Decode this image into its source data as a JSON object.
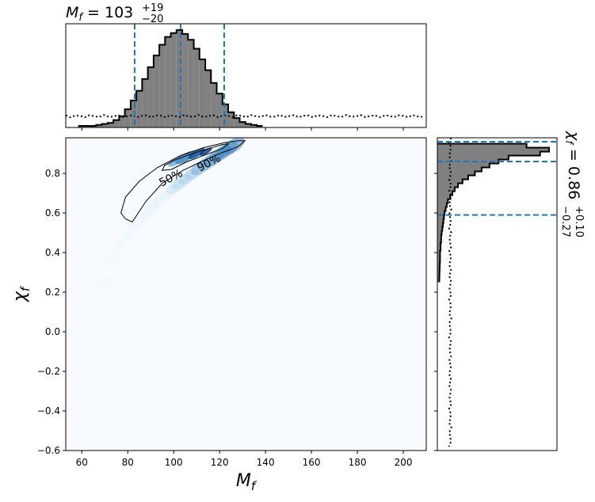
{
  "chart_data": [
    {
      "type": "heatmap",
      "panel": "joint",
      "xlabel": "M_f",
      "ylabel": "χ_f",
      "xlim": [
        53,
        210
      ],
      "ylim": [
        -0.6,
        0.98
      ],
      "xticks": [
        "60",
        "80",
        "100",
        "120",
        "140",
        "160",
        "180",
        "200"
      ],
      "yticks": [
        "−0.6",
        "−0.4",
        "−0.2",
        "0.0",
        "0.2",
        "0.4",
        "0.6",
        "0.8"
      ],
      "colormap": "Blues",
      "density_peak": {
        "mf": 103,
        "chi": 0.86
      },
      "contour_labels": [
        "50%",
        "90%"
      ],
      "contour_90": [
        [
          79,
          0.57
        ],
        [
          77,
          0.6
        ],
        [
          79,
          0.68
        ],
        [
          85,
          0.76
        ],
        [
          93,
          0.83
        ],
        [
          103,
          0.89
        ],
        [
          113,
          0.93
        ],
        [
          122,
          0.955
        ],
        [
          128,
          0.965
        ],
        [
          131,
          0.965
        ],
        [
          128,
          0.935
        ],
        [
          121,
          0.905
        ],
        [
          113,
          0.865
        ],
        [
          104,
          0.815
        ],
        [
          95,
          0.75
        ],
        [
          88,
          0.66
        ],
        [
          84,
          0.59
        ],
        [
          82,
          0.555
        ],
        [
          79,
          0.57
        ]
      ],
      "contour_50": [
        [
          96,
          0.84
        ],
        [
          101,
          0.87
        ],
        [
          108,
          0.9
        ],
        [
          115,
          0.925
        ],
        [
          121,
          0.945
        ],
        [
          124,
          0.95
        ],
        [
          121,
          0.925
        ],
        [
          114,
          0.895
        ],
        [
          106,
          0.86
        ],
        [
          99,
          0.82
        ],
        [
          95,
          0.815
        ],
        [
          96,
          0.84
        ]
      ]
    },
    {
      "type": "bar",
      "panel": "top-marginal",
      "title": {
        "base": "M_f = 103",
        "sup": "+19",
        "sub": "−20"
      },
      "x": [
        60,
        62.5,
        65,
        67.5,
        70,
        72.5,
        75,
        77.5,
        80,
        82.5,
        85,
        87.5,
        90,
        92.5,
        95,
        97.5,
        100,
        102.5,
        105,
        107.5,
        110,
        112.5,
        115,
        117.5,
        120,
        122.5,
        125,
        127.5,
        130,
        132.5,
        135,
        137.5
      ],
      "values": [
        0,
        0,
        0,
        0.01,
        0.02,
        0.03,
        0.06,
        0.1,
        0.17,
        0.26,
        0.36,
        0.48,
        0.6,
        0.72,
        0.83,
        0.91,
        0.95,
        0.98,
        0.94,
        0.88,
        0.79,
        0.68,
        0.57,
        0.44,
        0.33,
        0.22,
        0.14,
        0.08,
        0.04,
        0.02,
        0.01,
        0
      ],
      "prior_level": 0.1,
      "quantiles": [
        83,
        103,
        122
      ]
    },
    {
      "type": "bar",
      "panel": "right-marginal",
      "title": {
        "base": "χ_f = 0.86",
        "sup": "+0.10",
        "sub": "−0.27"
      },
      "orientation": "horizontal",
      "x": [
        0.94,
        0.92,
        0.9,
        0.88,
        0.86,
        0.84,
        0.82,
        0.8,
        0.78,
        0.76,
        0.74,
        0.72,
        0.7,
        0.68,
        0.66,
        0.64,
        0.62,
        0.6,
        0.58,
        0.56,
        0.54,
        0.52,
        0.5,
        0.48,
        0.46,
        0.44,
        0.42,
        0.4,
        0.38,
        0.36,
        0.34,
        0.32,
        0.3,
        0.28,
        0.26
      ],
      "values": [
        0.78,
        0.98,
        0.9,
        0.62,
        0.53,
        0.45,
        0.38,
        0.32,
        0.26,
        0.21,
        0.17,
        0.14,
        0.12,
        0.1,
        0.08,
        0.07,
        0.06,
        0.05,
        0.045,
        0.04,
        0.035,
        0.03,
        0.025,
        0.02,
        0.02,
        0.015,
        0.015,
        0.01,
        0.01,
        0.01,
        0.008,
        0.006,
        0.005,
        0.004,
        0.003
      ],
      "prior_level": 0.1,
      "quantiles": [
        0.59,
        0.86,
        0.96
      ]
    }
  ]
}
